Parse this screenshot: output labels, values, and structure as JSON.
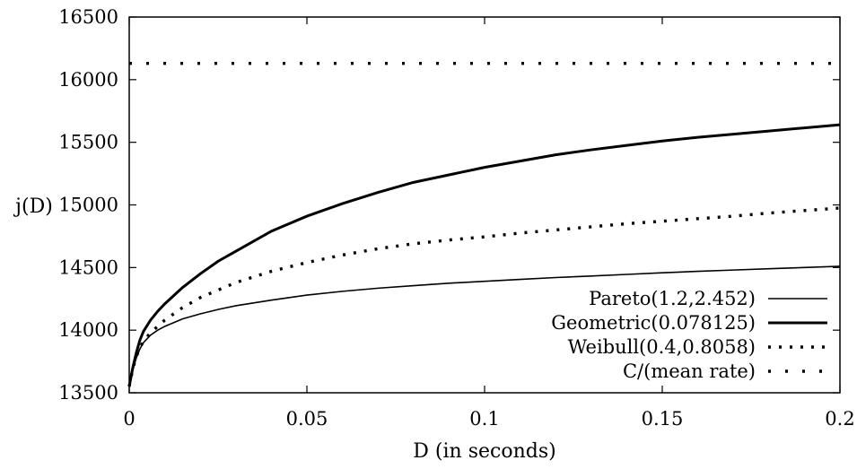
{
  "chart_data": {
    "type": "line",
    "title": "",
    "xlabel": "D  (in seconds)",
    "ylabel": "j(D)",
    "xlim": [
      0,
      0.2
    ],
    "ylim": [
      13500,
      16500
    ],
    "xticks": [
      0,
      0.05,
      0.1,
      0.15,
      0.2
    ],
    "xtick_labels": [
      "0",
      "0.05",
      "0.1",
      "0.15",
      "0.2"
    ],
    "yticks": [
      13500,
      14000,
      14500,
      15000,
      15500,
      16000,
      16500
    ],
    "ytick_labels": [
      "13500",
      "14000",
      "14500",
      "15000",
      "15500",
      "16000",
      "16500"
    ],
    "grid": false,
    "legend_position": "bottom-right",
    "series": [
      {
        "name": "Pareto(1.2,2.452)",
        "style": "thin",
        "x": [
          0,
          0.001,
          0.002,
          0.003,
          0.004,
          0.006,
          0.008,
          0.01,
          0.015,
          0.02,
          0.025,
          0.03,
          0.04,
          0.05,
          0.06,
          0.07,
          0.08,
          0.09,
          0.1,
          0.11,
          0.12,
          0.13,
          0.14,
          0.15,
          0.16,
          0.17,
          0.18,
          0.19,
          0.2
        ],
        "y": [
          13550,
          13680,
          13780,
          13850,
          13900,
          13960,
          14000,
          14030,
          14090,
          14130,
          14165,
          14195,
          14240,
          14280,
          14310,
          14335,
          14355,
          14375,
          14390,
          14405,
          14420,
          14432,
          14445,
          14458,
          14470,
          14480,
          14490,
          14500,
          14510
        ]
      },
      {
        "name": "Geometric(0.078125)",
        "style": "thick",
        "x": [
          0,
          0.001,
          0.002,
          0.003,
          0.004,
          0.006,
          0.008,
          0.01,
          0.015,
          0.02,
          0.025,
          0.03,
          0.04,
          0.05,
          0.06,
          0.07,
          0.08,
          0.09,
          0.1,
          0.11,
          0.12,
          0.13,
          0.14,
          0.15,
          0.16,
          0.17,
          0.18,
          0.19,
          0.2
        ],
        "y": [
          13550,
          13700,
          13820,
          13920,
          13990,
          14080,
          14150,
          14210,
          14340,
          14450,
          14550,
          14630,
          14790,
          14910,
          15010,
          15100,
          15180,
          15240,
          15300,
          15350,
          15400,
          15440,
          15475,
          15510,
          15540,
          15565,
          15590,
          15615,
          15640
        ]
      },
      {
        "name": "Weibull(0.4,0.8058)",
        "style": "dotted",
        "x": [
          0,
          0.001,
          0.002,
          0.003,
          0.004,
          0.006,
          0.008,
          0.01,
          0.015,
          0.02,
          0.025,
          0.03,
          0.04,
          0.05,
          0.06,
          0.07,
          0.08,
          0.09,
          0.1,
          0.11,
          0.12,
          0.13,
          0.14,
          0.15,
          0.16,
          0.17,
          0.18,
          0.19,
          0.2
        ],
        "y": [
          13550,
          13690,
          13790,
          13860,
          13910,
          13980,
          14030,
          14080,
          14180,
          14260,
          14320,
          14380,
          14470,
          14540,
          14600,
          14650,
          14690,
          14720,
          14745,
          14775,
          14800,
          14825,
          14850,
          14870,
          14890,
          14910,
          14935,
          14955,
          14975
        ]
      },
      {
        "name": "C/(mean rate)",
        "style": "sparse-dotted",
        "x": [
          0,
          0.2
        ],
        "y": [
          16130,
          16130
        ]
      }
    ]
  }
}
